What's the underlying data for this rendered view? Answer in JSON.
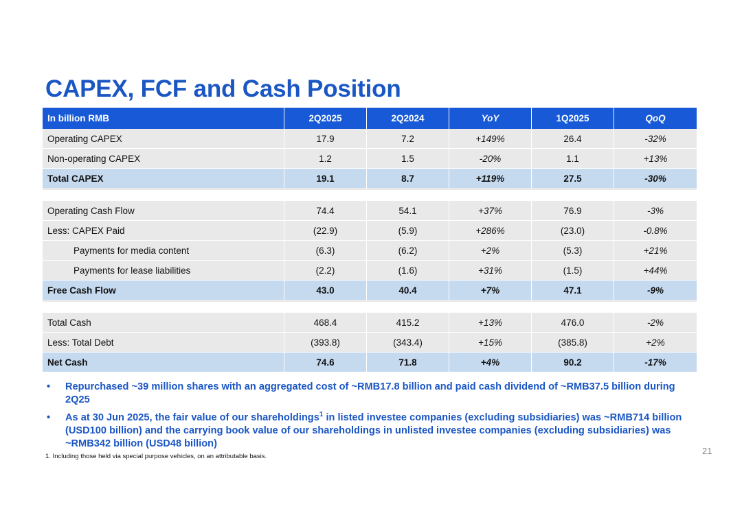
{
  "title": "CAPEX, FCF and Cash Position",
  "table": {
    "headers": [
      "In billion RMB",
      "2Q2025",
      "2Q2024",
      "YoY",
      "1Q2025",
      "QoQ"
    ],
    "sections": [
      {
        "rows": [
          {
            "label": "Operating CAPEX",
            "values": [
              "17.9",
              "7.2",
              "+149%",
              "26.4",
              "-32%"
            ],
            "total": false,
            "indent": false
          },
          {
            "label": "Non-operating CAPEX",
            "values": [
              "1.2",
              "1.5",
              "-20%",
              "1.1",
              "+13%"
            ],
            "total": false,
            "indent": false
          },
          {
            "label": "Total CAPEX",
            "values": [
              "19.1",
              "8.7",
              "+119%",
              "27.5",
              "-30%"
            ],
            "total": true,
            "indent": false
          }
        ]
      },
      {
        "rows": [
          {
            "label": "Operating Cash Flow",
            "values": [
              "74.4",
              "54.1",
              "+37%",
              "76.9",
              "-3%"
            ],
            "total": false,
            "indent": false
          },
          {
            "label": "Less: CAPEX Paid",
            "values": [
              "(22.9)",
              "(5.9)",
              "+286%",
              "(23.0)",
              "-0.8%"
            ],
            "total": false,
            "indent": false
          },
          {
            "label": "Payments for media content",
            "values": [
              "(6.3)",
              "(6.2)",
              "+2%",
              "(5.3)",
              "+21%"
            ],
            "total": false,
            "indent": true
          },
          {
            "label": "Payments for lease liabilities",
            "values": [
              "(2.2)",
              "(1.6)",
              "+31%",
              "(1.5)",
              "+44%"
            ],
            "total": false,
            "indent": true
          },
          {
            "label": "Free Cash Flow",
            "values": [
              "43.0",
              "40.4",
              "+7%",
              "47.1",
              "-9%"
            ],
            "total": true,
            "indent": false
          }
        ]
      },
      {
        "rows": [
          {
            "label": "Total Cash",
            "values": [
              "468.4",
              "415.2",
              "+13%",
              "476.0",
              "-2%"
            ],
            "total": false,
            "indent": false
          },
          {
            "label": "Less: Total Debt",
            "values": [
              "(393.8)",
              "(343.4)",
              "+15%",
              "(385.8)",
              "+2%"
            ],
            "total": false,
            "indent": false
          },
          {
            "label": "Net Cash",
            "values": [
              "74.6",
              "71.8",
              "+4%",
              "90.2",
              "-17%"
            ],
            "total": true,
            "indent": false
          }
        ]
      }
    ]
  },
  "bullets": [
    {
      "marker": "•",
      "text": "Repurchased ~39 million shares with an aggregated cost of ~RMB17.8 billion and paid cash dividend of ~RMB37.5 billion during 2Q25"
    },
    {
      "marker": "•",
      "text_before": "As at 30 Jun 2025, the fair value of our shareholdings",
      "sup": "1",
      "text_after": " in listed investee companies (excluding subsidiaries) was ~RMB714 billion (USD100 billion) and the carrying book value of our shareholdings in unlisted investee companies (excluding subsidiaries) was ~RMB342 billion (USD48 billion)"
    }
  ],
  "footnote": "1. Including those held via special purpose vehicles, on an attributable basis.",
  "page_number": "21"
}
